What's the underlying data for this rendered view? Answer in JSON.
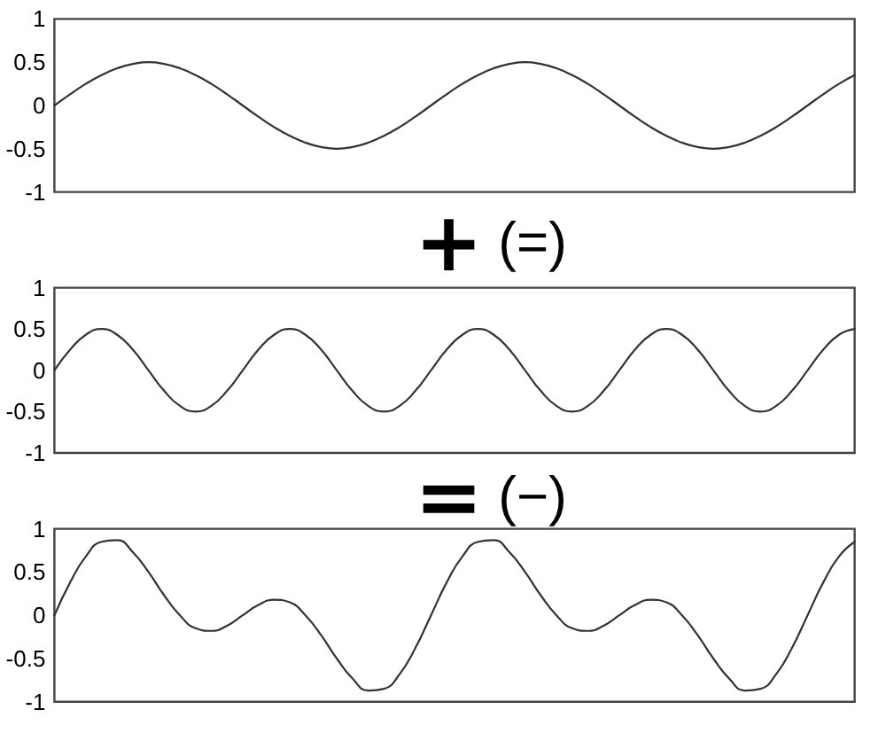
{
  "chart_data": [
    {
      "type": "line",
      "categories": [
        null,
        null,
        null,
        null,
        null,
        null,
        null,
        null,
        null,
        null,
        null,
        null,
        null,
        null,
        null,
        null,
        null,
        null,
        null,
        null,
        null,
        null,
        null,
        null,
        null,
        null,
        null,
        null,
        null,
        null,
        null,
        null,
        null,
        null,
        null,
        null,
        null,
        null,
        null,
        null,
        null,
        null,
        null,
        null,
        null,
        null,
        null,
        null,
        null,
        null,
        null,
        null
      ],
      "values": [
        0,
        0.13,
        0.25,
        0.35,
        0.43,
        0.48,
        0.5,
        0.48,
        0.43,
        0.35,
        0.25,
        0.13,
        0,
        -0.13,
        -0.25,
        -0.35,
        -0.43,
        -0.48,
        -0.5,
        -0.48,
        -0.43,
        -0.35,
        -0.25,
        -0.13,
        0,
        0.13,
        0.25,
        0.35,
        0.43,
        0.48,
        0.5,
        0.48,
        0.43,
        0.35,
        0.25,
        0.13,
        0,
        -0.13,
        -0.25,
        -0.35,
        -0.43,
        -0.48,
        -0.5,
        -0.48,
        -0.43,
        -0.35,
        -0.25,
        -0.13,
        0,
        0.13,
        0.25,
        0.35
      ],
      "color": "#333333",
      "ylim": [
        -1,
        1
      ],
      "yticks": [
        -1,
        -0.5,
        0,
        0.5,
        1
      ],
      "tick_labels": "y"
    },
    {
      "type": "line",
      "title": "+ (=)",
      "categories": [
        null,
        null,
        null,
        null,
        null,
        null,
        null,
        null,
        null,
        null,
        null,
        null,
        null,
        null,
        null,
        null,
        null,
        null,
        null,
        null,
        null,
        null,
        null,
        null,
        null,
        null,
        null,
        null,
        null,
        null,
        null,
        null,
        null,
        null,
        null,
        null,
        null,
        null,
        null,
        null,
        null,
        null,
        null,
        null,
        null,
        null,
        null,
        null,
        null,
        null,
        null,
        null
      ],
      "values": [
        0,
        0.25,
        0.43,
        0.5,
        0.43,
        0.25,
        0,
        -0.25,
        -0.43,
        -0.5,
        -0.43,
        -0.25,
        0,
        0.25,
        0.43,
        0.5,
        0.43,
        0.25,
        0,
        -0.25,
        -0.43,
        -0.5,
        -0.43,
        -0.25,
        0,
        0.25,
        0.43,
        0.5,
        0.43,
        0.25,
        0,
        -0.25,
        -0.43,
        -0.5,
        -0.43,
        -0.25,
        0,
        0.25,
        0.43,
        0.5,
        0.43,
        0.25,
        0,
        -0.25,
        -0.43,
        -0.5,
        -0.43,
        -0.25,
        0,
        0.25,
        0.43,
        0.5
      ],
      "color": "#333333",
      "ylim": [
        -1,
        1
      ],
      "yticks": [
        -1,
        -0.5,
        0,
        0.5,
        1
      ],
      "tick_labels": "y"
    },
    {
      "type": "line",
      "title": "= (−)",
      "categories": [
        null,
        null,
        null,
        null,
        null,
        null,
        null,
        null,
        null,
        null,
        null,
        null,
        null,
        null,
        null,
        null,
        null,
        null,
        null,
        null,
        null,
        null,
        null,
        null,
        null,
        null,
        null,
        null,
        null,
        null,
        null,
        null,
        null,
        null,
        null,
        null,
        null,
        null,
        null,
        null,
        null,
        null,
        null,
        null,
        null,
        null,
        null,
        null,
        null,
        null,
        null,
        null
      ],
      "values": [
        0,
        0.38,
        0.68,
        0.85,
        0.87,
        0.73,
        0.5,
        0.23,
        0,
        -0.15,
        -0.18,
        -0.12,
        0,
        0.12,
        0.18,
        0.15,
        0,
        -0.23,
        -0.5,
        -0.73,
        -0.87,
        -0.85,
        -0.68,
        -0.38,
        0,
        0.38,
        0.68,
        0.85,
        0.87,
        0.73,
        0.5,
        0.23,
        0,
        -0.15,
        -0.18,
        -0.12,
        0,
        0.12,
        0.18,
        0.15,
        0,
        -0.23,
        -0.5,
        -0.73,
        -0.87,
        -0.85,
        -0.68,
        -0.38,
        0,
        0.38,
        0.68,
        0.85
      ],
      "color": "#333333",
      "ylim": [
        -1,
        1
      ],
      "yticks": [
        -1,
        -0.5,
        0,
        0.5,
        1
      ],
      "tick_labels": "y"
    }
  ]
}
